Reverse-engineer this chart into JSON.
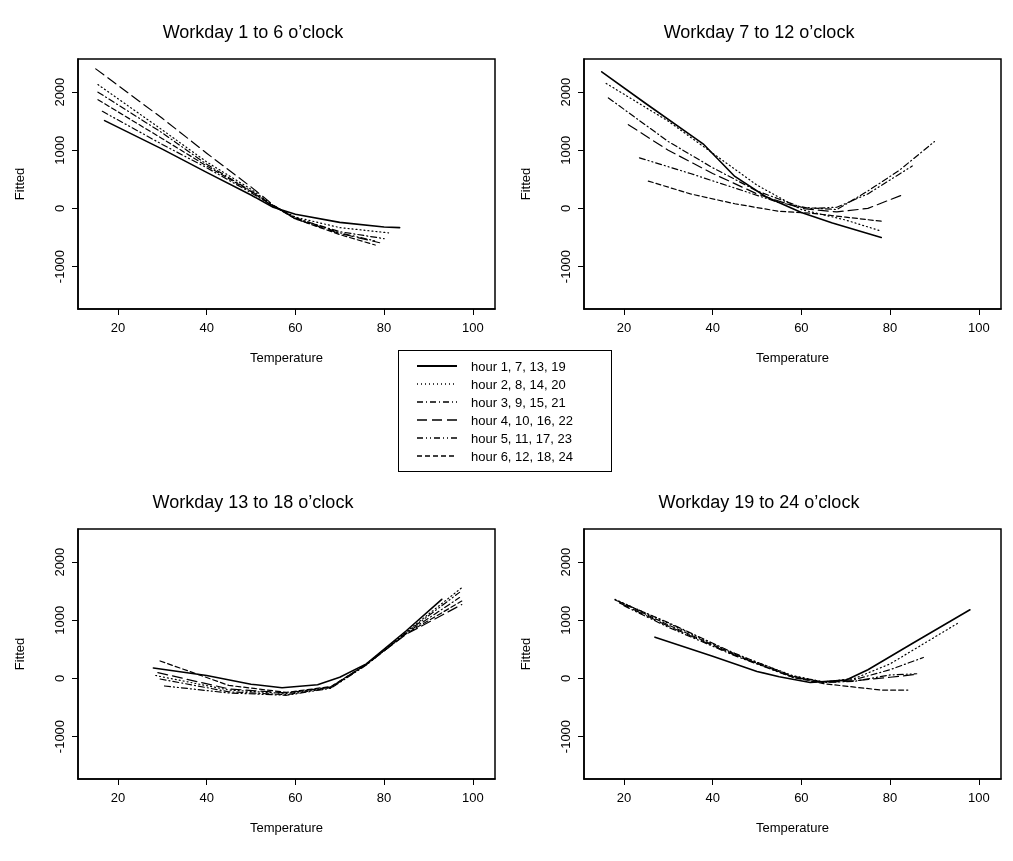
{
  "chart_data": [
    {
      "type": "line",
      "title": "Workday 1 to 6 o’clock",
      "xlabel": "Temperature",
      "ylabel": "Fitted",
      "xlim": [
        11,
        105
      ],
      "ylim": [
        -1730,
        2570
      ],
      "xticks": [
        20,
        40,
        60,
        80,
        100
      ],
      "yticks": [
        -1000,
        0,
        1000,
        2000
      ],
      "grid": false,
      "marker": "none",
      "legend": "bottom right",
      "series": [
        {
          "name": "hour 1, 7, 13, 19",
          "color": "#000000",
          "line_style": "solid",
          "x": [
            17,
            30,
            40,
            50,
            55,
            60,
            70,
            80,
            83.5
          ],
          "values": [
            1510,
            1020,
            620,
            230,
            20,
            -100,
            -240,
            -320,
            -330
          ]
        },
        {
          "name": "hour 2, 8, 14, 20",
          "color": "#000000",
          "line_style": "dotted",
          "x": [
            15.5,
            30,
            40,
            50,
            55,
            60,
            70,
            81
          ],
          "values": [
            2130,
            1350,
            800,
            330,
            50,
            -150,
            -330,
            -420
          ]
        },
        {
          "name": "hour 3, 9, 15, 21",
          "color": "#000000",
          "line_style": "dashdot",
          "x": [
            15.5,
            30,
            40,
            50,
            55,
            60,
            70,
            80
          ],
          "values": [
            2000,
            1300,
            760,
            300,
            50,
            -170,
            -400,
            -520
          ]
        },
        {
          "name": "hour 4, 10, 16, 22",
          "color": "#000000",
          "line_style": "longdash",
          "x": [
            15,
            30,
            40,
            50,
            55,
            60,
            70,
            79
          ],
          "values": [
            2400,
            1550,
            950,
            370,
            60,
            -180,
            -430,
            -590
          ]
        },
        {
          "name": "hour 5, 11, 17, 23",
          "color": "#000000",
          "line_style": "dashdotdot",
          "x": [
            16.5,
            30,
            40,
            50,
            55,
            60,
            70,
            78
          ],
          "values": [
            1670,
            1100,
            700,
            270,
            40,
            -160,
            -420,
            -560
          ]
        },
        {
          "name": "hour 6, 12, 18, 24",
          "color": "#000000",
          "line_style": "dashed",
          "x": [
            15.5,
            30,
            40,
            50,
            55,
            60,
            70,
            78
          ],
          "values": [
            1870,
            1200,
            730,
            290,
            40,
            -180,
            -450,
            -630
          ]
        }
      ]
    },
    {
      "type": "line",
      "title": "Workday 7 to 12 o’clock",
      "xlabel": "Temperature",
      "ylabel": "Fitted",
      "xlim": [
        11,
        105
      ],
      "ylim": [
        -1730,
        2570
      ],
      "xticks": [
        20,
        40,
        60,
        80,
        100
      ],
      "yticks": [
        -1000,
        0,
        1000,
        2000
      ],
      "grid": false,
      "marker": "none",
      "series": [
        {
          "color": "#000000",
          "line_style": "solid",
          "x": [
            15,
            25,
            38,
            45,
            52,
            60,
            67,
            78
          ],
          "values": [
            2350,
            1800,
            1100,
            550,
            200,
            -70,
            -250,
            -500
          ]
        },
        {
          "color": "#000000",
          "line_style": "dotted",
          "x": [
            16,
            30,
            40,
            50,
            60,
            70,
            78
          ],
          "values": [
            2150,
            1500,
            950,
            400,
            -20,
            -200,
            -390
          ]
        },
        {
          "color": "#000000",
          "line_style": "dashdot",
          "x": [
            16.5,
            30,
            40,
            50,
            60,
            68,
            75,
            82,
            90
          ],
          "values": [
            1900,
            1150,
            700,
            300,
            20,
            -20,
            300,
            650,
            1150
          ]
        },
        {
          "color": "#000000",
          "line_style": "longdash",
          "x": [
            21,
            30,
            40,
            50,
            60,
            68,
            75,
            83
          ],
          "values": [
            1440,
            1000,
            600,
            250,
            0,
            -60,
            0,
            240
          ]
        },
        {
          "color": "#000000",
          "line_style": "dashdotdot",
          "x": [
            23.5,
            35,
            45,
            55,
            62,
            68,
            75,
            85
          ],
          "values": [
            870,
            600,
            350,
            100,
            0,
            20,
            250,
            730
          ]
        },
        {
          "color": "#000000",
          "line_style": "dashed",
          "x": [
            25.5,
            35,
            45,
            55,
            62,
            70,
            78
          ],
          "values": [
            470,
            250,
            80,
            -50,
            -80,
            -150,
            -220
          ]
        }
      ]
    },
    {
      "type": "line",
      "title": "Workday 13 to 18 o’clock",
      "xlabel": "Temperature",
      "ylabel": "Fitted",
      "xlim": [
        11,
        105
      ],
      "ylim": [
        -1730,
        2570
      ],
      "xticks": [
        20,
        40,
        60,
        80,
        100
      ],
      "yticks": [
        -1000,
        0,
        1000,
        2000
      ],
      "grid": false,
      "marker": "none",
      "series": [
        {
          "color": "#000000",
          "line_style": "solid",
          "x": [
            28,
            40,
            50,
            57,
            65,
            70,
            76,
            85,
            93
          ],
          "values": [
            180,
            50,
            -100,
            -160,
            -110,
            20,
            250,
            820,
            1360
          ]
        },
        {
          "color": "#000000",
          "line_style": "dotted",
          "x": [
            28.5,
            45,
            58,
            68,
            76,
            85,
            97.5
          ],
          "values": [
            50,
            -200,
            -260,
            -150,
            250,
            800,
            1560
          ]
        },
        {
          "color": "#000000",
          "line_style": "dashdot",
          "x": [
            29.5,
            45,
            58,
            68,
            76,
            85,
            97
          ],
          "values": [
            -10,
            -230,
            -280,
            -160,
            240,
            780,
            1390
          ]
        },
        {
          "color": "#000000",
          "line_style": "longdash",
          "x": [
            29,
            45,
            58,
            68,
            76,
            85,
            97.5
          ],
          "values": [
            100,
            -180,
            -250,
            -150,
            240,
            760,
            1270
          ]
        },
        {
          "color": "#000000",
          "line_style": "dashdotdot",
          "x": [
            30.5,
            45,
            58,
            68,
            76,
            85,
            97
          ],
          "values": [
            -130,
            -250,
            -290,
            -170,
            230,
            790,
            1480
          ]
        },
        {
          "color": "#000000",
          "line_style": "dashed",
          "x": [
            29.5,
            45,
            58,
            68,
            76,
            85,
            97.5
          ],
          "values": [
            300,
            -120,
            -240,
            -140,
            240,
            770,
            1330
          ]
        }
      ]
    },
    {
      "type": "line",
      "title": "Workday 19 to 24 o’clock",
      "xlabel": "Temperature",
      "ylabel": "Fitted",
      "xlim": [
        11,
        105
      ],
      "ylim": [
        -1730,
        2570
      ],
      "xticks": [
        20,
        40,
        60,
        80,
        100
      ],
      "yticks": [
        -1000,
        0,
        1000,
        2000
      ],
      "grid": false,
      "marker": "none",
      "series": [
        {
          "color": "#000000",
          "line_style": "solid",
          "x": [
            27,
            40,
            50,
            55,
            62,
            70,
            75,
            85,
            98
          ],
          "values": [
            710,
            380,
            120,
            30,
            -70,
            -30,
            150,
            600,
            1180
          ]
        },
        {
          "color": "#000000",
          "line_style": "dotted",
          "x": [
            18,
            30,
            45,
            58,
            65,
            72,
            80,
            95.5
          ],
          "values": [
            1360,
            950,
            420,
            50,
            -60,
            0,
            250,
            960
          ]
        },
        {
          "color": "#000000",
          "line_style": "dashdot",
          "x": [
            18,
            30,
            45,
            58,
            65,
            72,
            80,
            87.5
          ],
          "values": [
            1350,
            960,
            430,
            40,
            -60,
            -20,
            150,
            360
          ]
        },
        {
          "color": "#000000",
          "line_style": "longdash",
          "x": [
            19,
            30,
            45,
            58,
            65,
            72,
            80,
            86
          ],
          "values": [
            1300,
            900,
            400,
            30,
            -70,
            -40,
            20,
            70
          ]
        },
        {
          "color": "#000000",
          "line_style": "dashdotdot",
          "x": [
            20,
            30,
            45,
            58,
            65,
            72,
            80,
            86
          ],
          "values": [
            1250,
            880,
            390,
            20,
            -70,
            -50,
            60,
            80
          ]
        },
        {
          "color": "#000000",
          "line_style": "dashed",
          "x": [
            19,
            30,
            45,
            58,
            65,
            72,
            78,
            84
          ],
          "values": [
            1320,
            920,
            410,
            20,
            -90,
            -150,
            -200,
            -200
          ]
        }
      ]
    }
  ]
}
